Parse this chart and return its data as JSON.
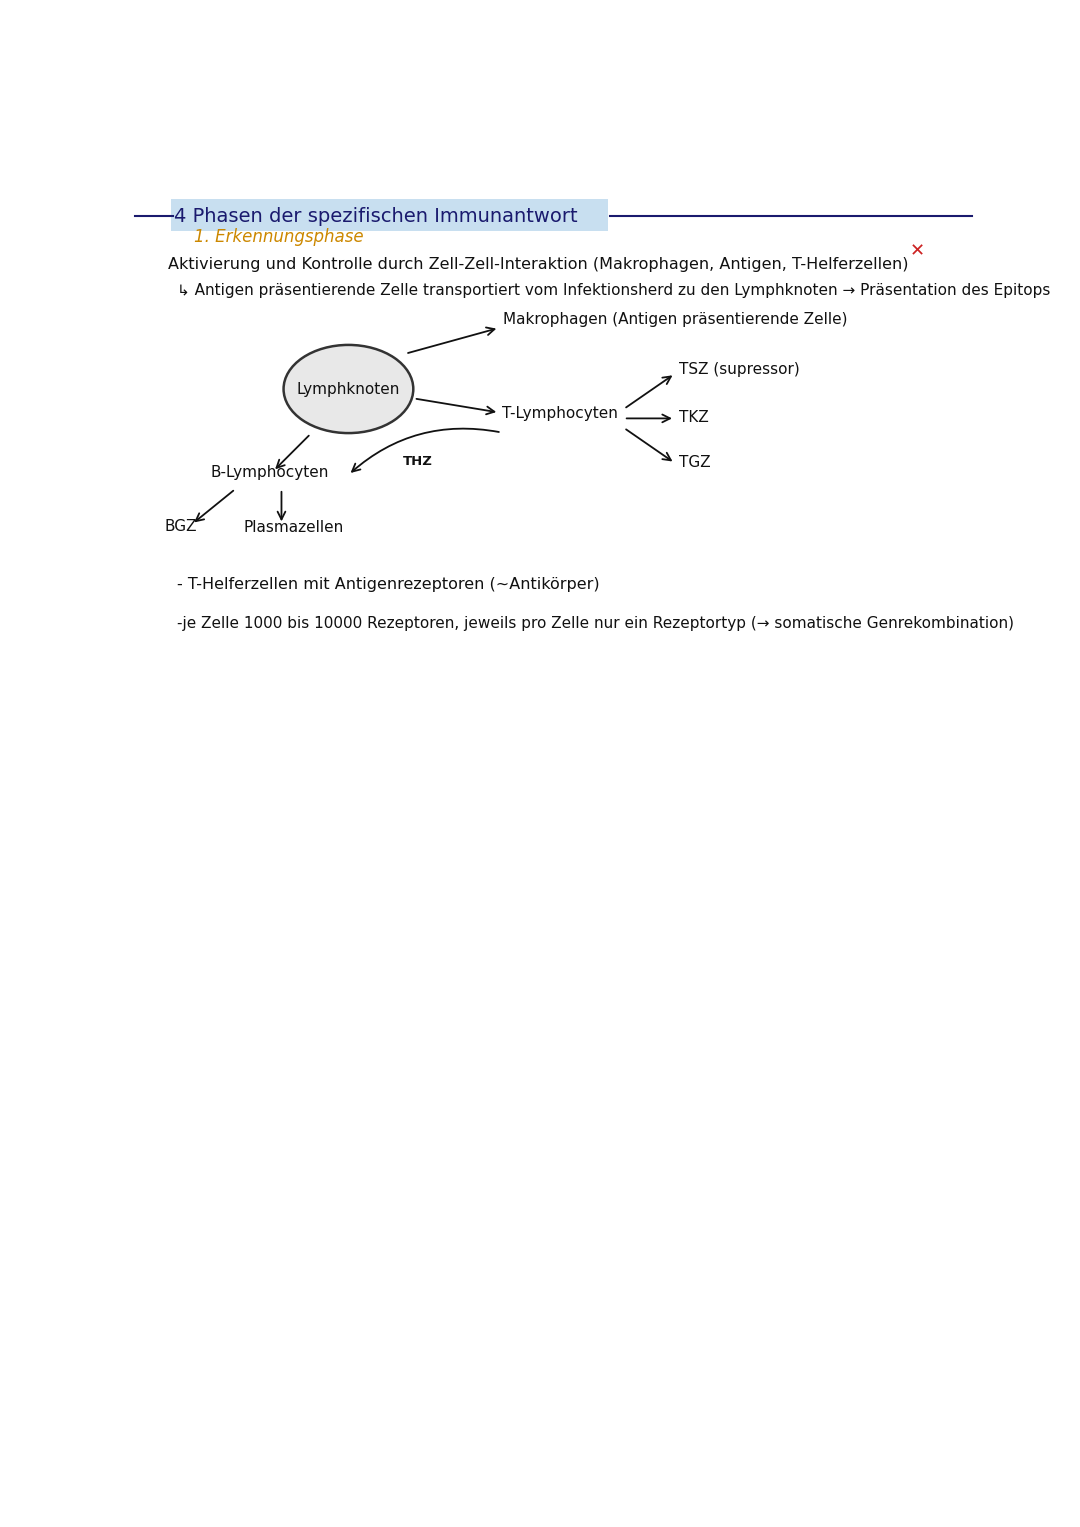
{
  "title": "4 Phasen der spezifischen Immunantwort",
  "title_color": "#1a1a6e",
  "subtitle": "1. Erkennungsphase",
  "subtitle_color": "#cc8800",
  "line1": "Aktivierung und Kontrolle durch Zell-Zell-Interaktion (Makrophagen, Antigen, T-Helferzellen)",
  "line2": "↳ Antigen präsentierende Zelle transportiert vom Infektionsherd zu den Lymphknoten → Präsentation des Epitops",
  "node_label": "Lymphknoten",
  "makrophagen_label": "Makrophagen (Antigen präsentierende Zelle)",
  "t_lympho_label": "T-Lymphocyten",
  "tsz_label": "TSZ (supressor)",
  "tkz_label": "TKZ",
  "tgz_label": "TGZ",
  "b_lympho_label": "B-Lymphocyten",
  "thz_label": "THZ",
  "bgz_label": "BGZ",
  "plasmazellen_label": "Plasmazellen",
  "note1": "- T-Helferzellen mit Antigenrezeptoren (~Antikörper)",
  "note2": "-je Zelle 1000 bis 10000 Rezeptoren, jeweils pro Zelle nur ein Rezeptortyp (→ somatische Genrekombination)",
  "background_color": "#ffffff",
  "text_color": "#111111",
  "arrow_color": "#111111",
  "line_color": "#1a1a6e",
  "cross_color": "#cc2222"
}
